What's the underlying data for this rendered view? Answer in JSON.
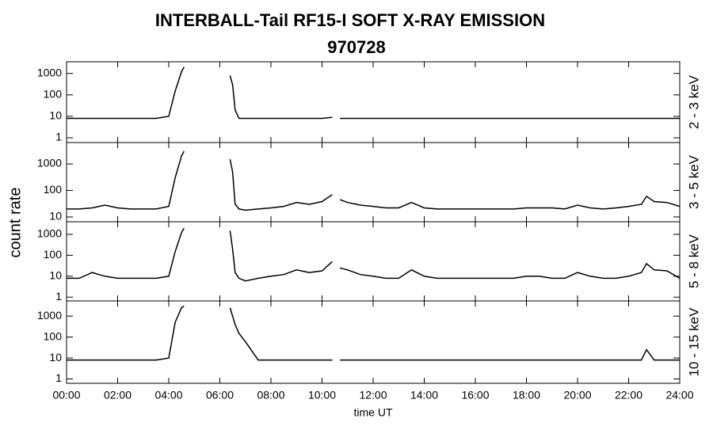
{
  "chart_data": {
    "type": "line",
    "title": "INTERBALL-Tail RF15-I SOFT X-RAY EMISSION",
    "subtitle": "970728",
    "xlabel": "time UT",
    "ylabel": "count rate",
    "log_scale": true,
    "grid": false,
    "xlim": [
      0,
      24
    ],
    "xticks": [
      {
        "value": 0,
        "label": "00:00"
      },
      {
        "value": 2,
        "label": "02:00"
      },
      {
        "value": 4,
        "label": "04:00"
      },
      {
        "value": 6,
        "label": "06:00"
      },
      {
        "value": 8,
        "label": "08:00"
      },
      {
        "value": 10,
        "label": "10:00"
      },
      {
        "value": 12,
        "label": "12:00"
      },
      {
        "value": 14,
        "label": "14:00"
      },
      {
        "value": 16,
        "label": "16:00"
      },
      {
        "value": 18,
        "label": "18:00"
      },
      {
        "value": 20,
        "label": "20:00"
      },
      {
        "value": 22,
        "label": "22:00"
      },
      {
        "value": 24,
        "label": "24:00"
      }
    ],
    "x": [
      0,
      0.5,
      1,
      1.5,
      2,
      2.5,
      3,
      3.5,
      4,
      4.25,
      4.5,
      4.6,
      5.5,
      6.4,
      6.5,
      6.6,
      6.75,
      7,
      7.5,
      8,
      8.5,
      9,
      9.5,
      10,
      10.4,
      10.5,
      10.7,
      11,
      11.5,
      12,
      12.5,
      13,
      13.5,
      14,
      14.5,
      15,
      15.5,
      16,
      16.5,
      17,
      17.5,
      18,
      18.5,
      19,
      19.5,
      20,
      20.5,
      21,
      21.5,
      22,
      22.5,
      22.7,
      23,
      23.5,
      24
    ],
    "series": [
      {
        "name": "2 - 3 keV",
        "color": "#000000",
        "ylim": [
          0.6,
          3500
        ],
        "yticks": [
          1,
          10,
          100,
          1000
        ],
        "values": [
          8,
          8,
          8,
          8,
          8,
          8,
          8,
          8,
          10,
          150,
          1200,
          2000,
          null,
          800,
          300,
          20,
          8,
          8,
          8,
          8,
          8,
          8,
          8,
          8,
          9,
          null,
          8,
          8,
          8,
          8,
          8,
          8,
          8,
          8,
          8,
          8,
          8,
          8,
          8,
          8,
          8,
          8,
          8,
          8,
          8,
          8,
          8,
          8,
          8,
          8,
          8,
          8,
          8,
          8,
          8
        ]
      },
      {
        "name": "3 - 5 keV",
        "color": "#000000",
        "ylim": [
          6.6,
          6400
        ],
        "yticks": [
          10,
          100,
          1000
        ],
        "values": [
          20,
          20,
          22,
          28,
          22,
          20,
          20,
          20,
          25,
          300,
          2000,
          3000,
          null,
          1500,
          500,
          30,
          20,
          18,
          20,
          22,
          25,
          35,
          30,
          38,
          70,
          null,
          45,
          35,
          28,
          25,
          22,
          22,
          35,
          22,
          20,
          20,
          20,
          20,
          20,
          20,
          20,
          22,
          22,
          22,
          20,
          28,
          22,
          20,
          22,
          25,
          30,
          60,
          38,
          35,
          25
        ]
      },
      {
        "name": "5 - 8 keV",
        "color": "#000000",
        "ylim": [
          0.66,
          4000
        ],
        "yticks": [
          1,
          10,
          100,
          1000
        ],
        "values": [
          8,
          8,
          15,
          10,
          8,
          8,
          8,
          8,
          10,
          150,
          1200,
          2000,
          null,
          1500,
          200,
          15,
          8,
          6,
          8,
          10,
          12,
          20,
          15,
          18,
          50,
          null,
          25,
          20,
          12,
          10,
          8,
          8,
          20,
          10,
          8,
          8,
          8,
          8,
          8,
          8,
          8,
          10,
          10,
          8,
          8,
          15,
          10,
          8,
          8,
          10,
          15,
          40,
          20,
          18,
          8
        ]
      },
      {
        "name": "10 - 15 keV",
        "color": "#000000",
        "ylim": [
          0.62,
          5300
        ],
        "yticks": [
          1,
          10,
          100,
          1000
        ],
        "values": [
          8,
          8,
          8,
          8,
          8,
          8,
          8,
          8,
          10,
          500,
          2500,
          3000,
          null,
          2500,
          1000,
          400,
          150,
          60,
          8,
          8,
          8,
          8,
          8,
          8,
          8,
          null,
          8,
          8,
          8,
          8,
          8,
          8,
          8,
          8,
          8,
          8,
          8,
          8,
          8,
          8,
          8,
          8,
          8,
          8,
          8,
          8,
          8,
          8,
          8,
          8,
          8,
          25,
          8,
          8,
          8
        ]
      }
    ]
  }
}
